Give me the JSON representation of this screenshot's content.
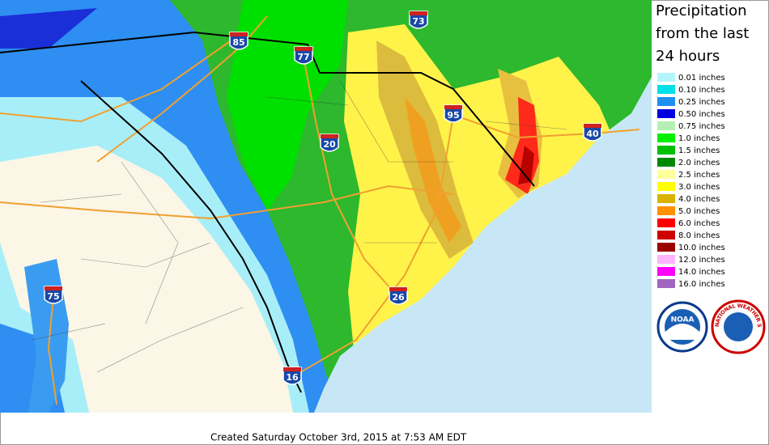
{
  "title": [
    "Precipitation",
    "from the last",
    "24 hours"
  ],
  "legend": [
    {
      "label": "0.01 inches",
      "color": "#b4f4fb"
    },
    {
      "label": "0.10 inches",
      "color": "#00e0e8"
    },
    {
      "label": "0.25 inches",
      "color": "#1e90f0"
    },
    {
      "label": "0.50 inches",
      "color": "#0000e0"
    },
    {
      "label": "0.75 inches",
      "color": "#b4f0b4"
    },
    {
      "label": "1.0 inches",
      "color": "#00f000"
    },
    {
      "label": "1.5 inches",
      "color": "#00c000"
    },
    {
      "label": "2.0 inches",
      "color": "#008a00"
    },
    {
      "label": "2.5 inches",
      "color": "#ffff9c"
    },
    {
      "label": "3.0 inches",
      "color": "#ffff00"
    },
    {
      "label": "4.0 inches",
      "color": "#d8b400"
    },
    {
      "label": "5.0 inches",
      "color": "#ff9000"
    },
    {
      "label": "6.0 inches",
      "color": "#ff0000"
    },
    {
      "label": "8.0 inches",
      "color": "#d00000"
    },
    {
      "label": "10.0 inches",
      "color": "#9a0000"
    },
    {
      "label": "12.0 inches",
      "color": "#ffb4ff"
    },
    {
      "label": "14.0 inches",
      "color": "#ff00ff"
    },
    {
      "label": "16.0 inches",
      "color": "#a066c0"
    }
  ],
  "interstates": [
    "85",
    "73",
    "77",
    "95",
    "40",
    "20",
    "26",
    "75",
    "16"
  ],
  "logos": {
    "noaa": "NOAA",
    "nws": "NATIONAL WEATHER SERVICE"
  },
  "footer": "Created Saturday October 3rd, 2015 at 7:53 AM EDT"
}
